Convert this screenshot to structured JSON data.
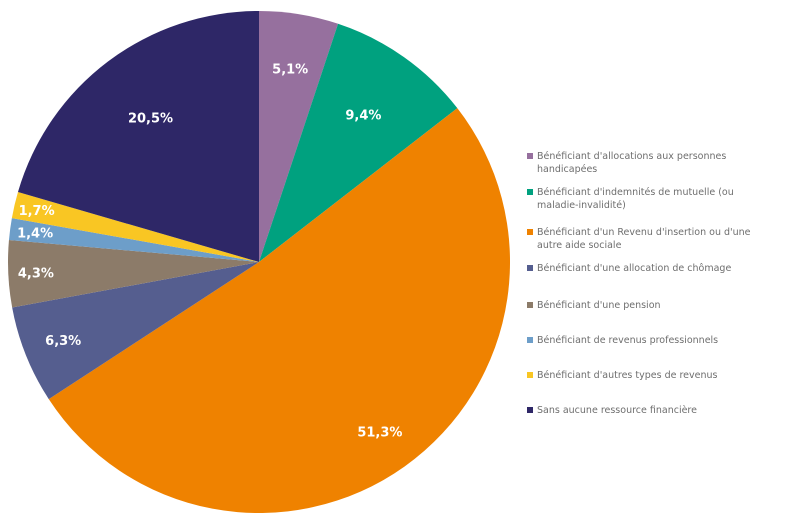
{
  "chart_data": {
    "type": "pie",
    "start_angle_deg": 0,
    "direction": "clockwise",
    "legend_position": "right",
    "slices": [
      {
        "label": "Bénéficiant d'allocations aux personnes handicapées",
        "value": 5.1,
        "display": "5,1%",
        "color": "#96709e"
      },
      {
        "label": "Bénéficiant d'indemnités de mutuelle (ou maladie-invalidité)",
        "value": 9.4,
        "display": "9,4%",
        "color": "#00a17f"
      },
      {
        "label": "Bénéficiant d'un Revenu d'insertion ou d'une autre aide sociale",
        "value": 51.3,
        "display": "51,3%",
        "color": "#ef8200"
      },
      {
        "label": "Bénéficiant d'une allocation de chômage",
        "value": 6.3,
        "display": "6,3%",
        "color": "#555e8f"
      },
      {
        "label": "Bénéficiant d'une pension",
        "value": 4.3,
        "display": "4,3%",
        "color": "#8c7b69"
      },
      {
        "label": "Bénéficiant de revenus professionnels",
        "value": 1.4,
        "display": "1,4%",
        "color": "#6d9ec9"
      },
      {
        "label": "Bénéficiant d'autres types de revenus",
        "value": 1.7,
        "display": "1,7%",
        "color": "#f9c623"
      },
      {
        "label": "Sans aucune ressource financière",
        "value": 20.5,
        "display": "20,5%",
        "color": "#2e2767"
      }
    ]
  }
}
